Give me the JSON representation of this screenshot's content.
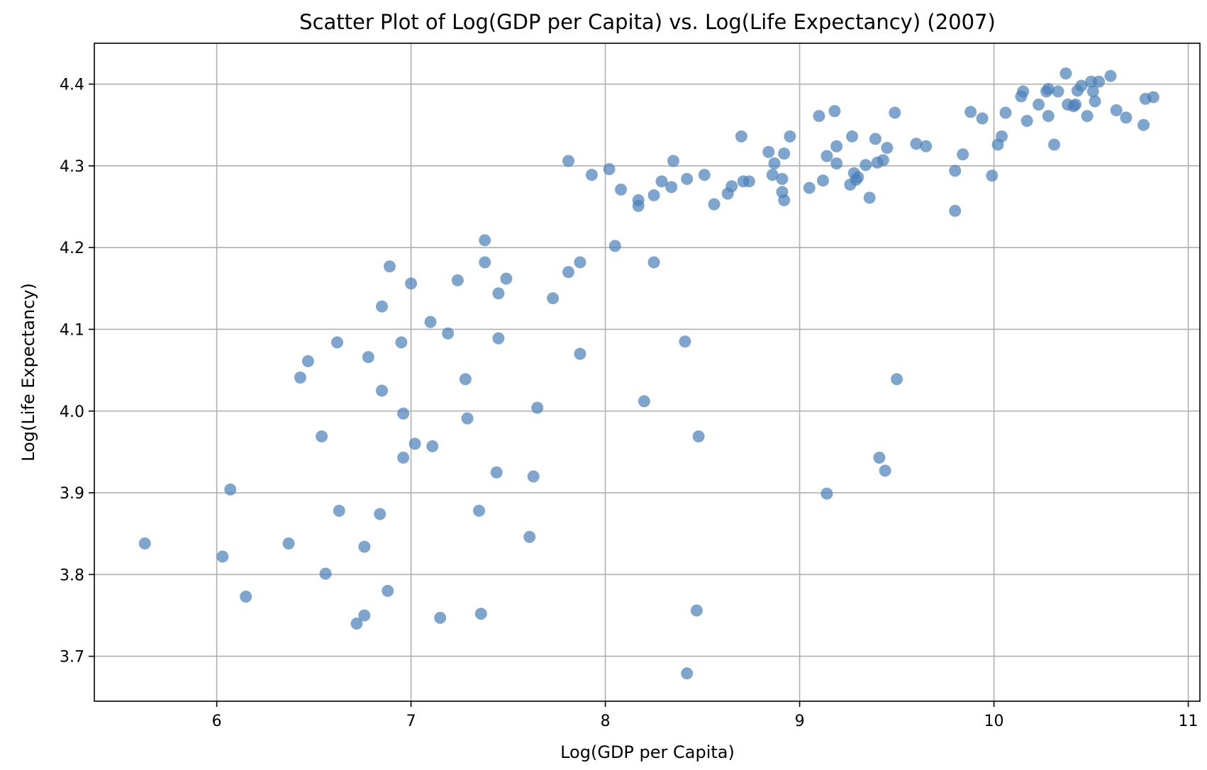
{
  "chart_data": {
    "type": "scatter",
    "title": "Scatter Plot of Log(GDP per Capita) vs. Log(Life Expectancy) (2007)",
    "xlabel": "Log(GDP per Capita)",
    "ylabel": "Log(Life Expectancy)",
    "xlim": [
      5.37,
      11.06
    ],
    "ylim": [
      3.645,
      4.45
    ],
    "xticks": [
      6,
      7,
      8,
      9,
      10,
      11
    ],
    "yticks": [
      3.7,
      3.8,
      3.9,
      4.0,
      4.1,
      4.2,
      4.3,
      4.4
    ],
    "xtick_labels": [
      "6",
      "7",
      "8",
      "9",
      "10",
      "11"
    ],
    "ytick_labels": [
      "3.7",
      "3.8",
      "3.9",
      "4.0",
      "4.1",
      "4.2",
      "4.3",
      "4.4"
    ],
    "grid": true,
    "legend": "none",
    "marker_color": "#4a7fb8",
    "marker_alpha": 0.7,
    "points": [
      [
        5.63,
        3.838
      ],
      [
        6.03,
        3.822
      ],
      [
        6.07,
        3.904
      ],
      [
        6.15,
        3.773
      ],
      [
        6.37,
        3.838
      ],
      [
        6.43,
        4.041
      ],
      [
        6.47,
        4.061
      ],
      [
        6.54,
        3.969
      ],
      [
        6.56,
        3.801
      ],
      [
        6.62,
        4.084
      ],
      [
        6.63,
        3.878
      ],
      [
        6.72,
        3.74
      ],
      [
        6.76,
        3.834
      ],
      [
        6.76,
        3.75
      ],
      [
        6.78,
        4.066
      ],
      [
        6.84,
        3.874
      ],
      [
        6.85,
        4.128
      ],
      [
        6.85,
        4.025
      ],
      [
        6.88,
        3.78
      ],
      [
        6.89,
        4.177
      ],
      [
        6.95,
        4.084
      ],
      [
        6.96,
        3.997
      ],
      [
        6.96,
        3.943
      ],
      [
        7.0,
        4.156
      ],
      [
        7.02,
        3.96
      ],
      [
        7.1,
        4.109
      ],
      [
        7.11,
        3.957
      ],
      [
        7.15,
        3.747
      ],
      [
        7.19,
        4.095
      ],
      [
        7.24,
        4.16
      ],
      [
        7.28,
        4.039
      ],
      [
        7.29,
        3.991
      ],
      [
        7.35,
        3.878
      ],
      [
        7.36,
        3.752
      ],
      [
        7.38,
        4.209
      ],
      [
        7.38,
        4.182
      ],
      [
        7.44,
        3.925
      ],
      [
        7.45,
        4.144
      ],
      [
        7.45,
        4.089
      ],
      [
        7.49,
        4.162
      ],
      [
        7.61,
        3.846
      ],
      [
        7.63,
        3.92
      ],
      [
        7.65,
        4.004
      ],
      [
        7.73,
        4.138
      ],
      [
        7.81,
        4.306
      ],
      [
        7.81,
        4.17
      ],
      [
        7.87,
        4.182
      ],
      [
        7.87,
        4.07
      ],
      [
        7.93,
        4.289
      ],
      [
        8.02,
        4.296
      ],
      [
        8.05,
        4.202
      ],
      [
        8.08,
        4.271
      ],
      [
        8.17,
        4.258
      ],
      [
        8.17,
        4.251
      ],
      [
        8.2,
        4.012
      ],
      [
        8.25,
        4.182
      ],
      [
        8.25,
        4.264
      ],
      [
        8.29,
        4.281
      ],
      [
        8.34,
        4.274
      ],
      [
        8.35,
        4.306
      ],
      [
        8.41,
        4.085
      ],
      [
        8.42,
        3.679
      ],
      [
        8.42,
        4.284
      ],
      [
        8.47,
        3.756
      ],
      [
        8.48,
        3.969
      ],
      [
        8.51,
        4.289
      ],
      [
        8.56,
        4.253
      ],
      [
        8.63,
        4.266
      ],
      [
        8.65,
        4.275
      ],
      [
        8.7,
        4.336
      ],
      [
        8.71,
        4.281
      ],
      [
        8.74,
        4.281
      ],
      [
        8.84,
        4.317
      ],
      [
        8.86,
        4.289
      ],
      [
        8.87,
        4.303
      ],
      [
        8.91,
        4.284
      ],
      [
        8.91,
        4.268
      ],
      [
        8.92,
        4.258
      ],
      [
        8.92,
        4.315
      ],
      [
        8.95,
        4.336
      ],
      [
        9.05,
        4.273
      ],
      [
        9.1,
        4.361
      ],
      [
        9.12,
        4.282
      ],
      [
        9.14,
        3.899
      ],
      [
        9.14,
        4.312
      ],
      [
        9.18,
        4.367
      ],
      [
        9.19,
        4.324
      ],
      [
        9.19,
        4.303
      ],
      [
        9.26,
        4.277
      ],
      [
        9.27,
        4.336
      ],
      [
        9.28,
        4.291
      ],
      [
        9.29,
        4.283
      ],
      [
        9.3,
        4.286
      ],
      [
        9.34,
        4.301
      ],
      [
        9.36,
        4.261
      ],
      [
        9.39,
        4.333
      ],
      [
        9.4,
        4.304
      ],
      [
        9.41,
        3.943
      ],
      [
        9.43,
        4.307
      ],
      [
        9.44,
        3.927
      ],
      [
        9.45,
        4.322
      ],
      [
        9.49,
        4.365
      ],
      [
        9.5,
        4.039
      ],
      [
        9.6,
        4.327
      ],
      [
        9.65,
        4.324
      ],
      [
        9.8,
        4.294
      ],
      [
        9.8,
        4.245
      ],
      [
        9.84,
        4.314
      ],
      [
        9.88,
        4.366
      ],
      [
        9.94,
        4.358
      ],
      [
        9.99,
        4.288
      ],
      [
        10.02,
        4.326
      ],
      [
        10.04,
        4.336
      ],
      [
        10.06,
        4.365
      ],
      [
        10.14,
        4.385
      ],
      [
        10.15,
        4.391
      ],
      [
        10.17,
        4.355
      ],
      [
        10.23,
        4.375
      ],
      [
        10.27,
        4.391
      ],
      [
        10.28,
        4.361
      ],
      [
        10.28,
        4.394
      ],
      [
        10.31,
        4.326
      ],
      [
        10.33,
        4.391
      ],
      [
        10.37,
        4.413
      ],
      [
        10.38,
        4.375
      ],
      [
        10.41,
        4.373
      ],
      [
        10.42,
        4.375
      ],
      [
        10.43,
        4.392
      ],
      [
        10.45,
        4.398
      ],
      [
        10.48,
        4.361
      ],
      [
        10.5,
        4.403
      ],
      [
        10.51,
        4.391
      ],
      [
        10.52,
        4.379
      ],
      [
        10.54,
        4.403
      ],
      [
        10.6,
        4.41
      ],
      [
        10.63,
        4.368
      ],
      [
        10.68,
        4.359
      ],
      [
        10.77,
        4.35
      ],
      [
        10.78,
        4.382
      ],
      [
        10.82,
        4.384
      ]
    ]
  }
}
